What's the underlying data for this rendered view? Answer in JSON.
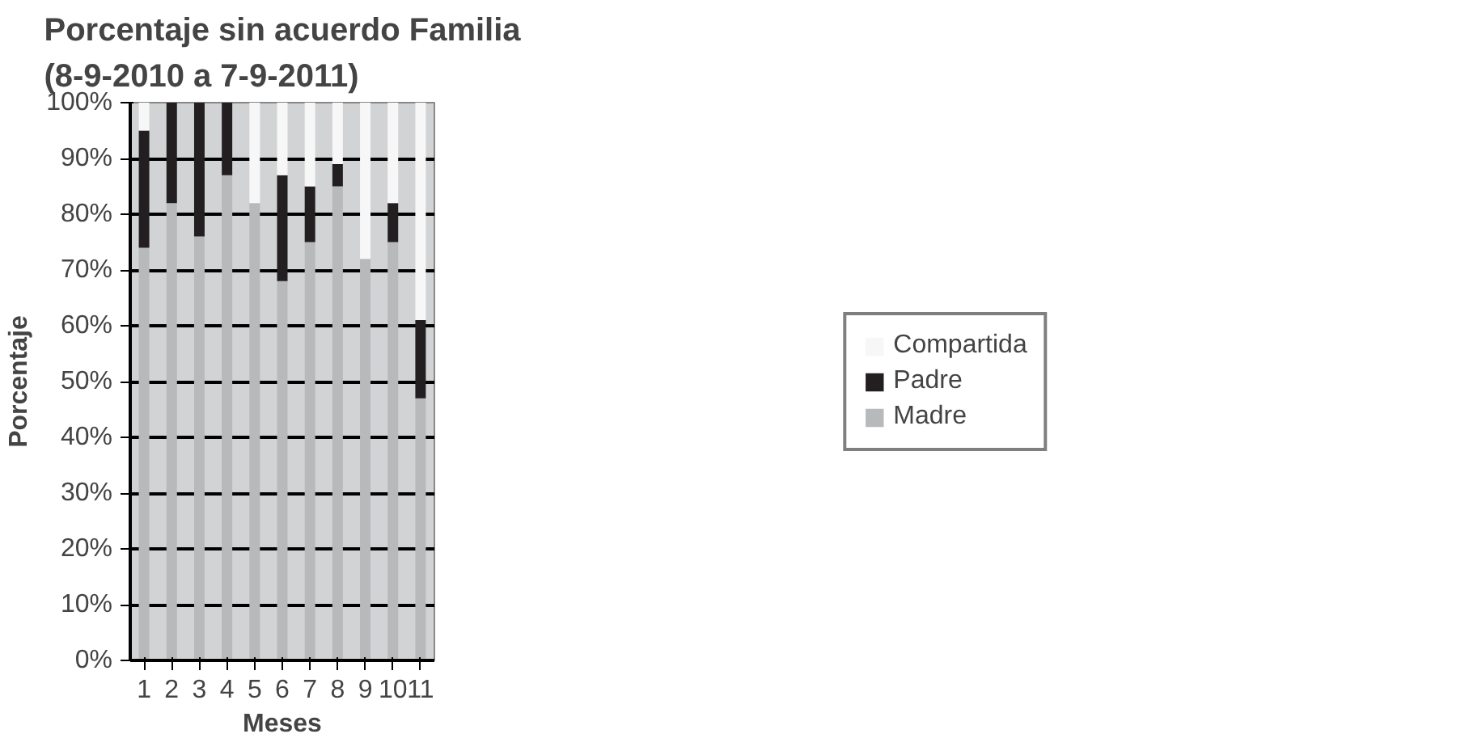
{
  "chart_data": {
    "type": "bar",
    "title": "Porcentaje sin acuerdo Familia\n(8-9-2010 a 7-9-2011)",
    "xlabel": "Meses",
    "ylabel": "Porcentaje",
    "categories": [
      "1",
      "2",
      "3",
      "4",
      "5",
      "6",
      "7",
      "8",
      "9",
      "10",
      "11"
    ],
    "stacked": true,
    "series": [
      {
        "name": "Madre",
        "color": "#b8b9bb",
        "values": [
          74,
          82,
          76,
          87,
          82,
          68,
          75,
          85,
          72,
          75,
          47
        ]
      },
      {
        "name": "Padre",
        "color": "#231f20",
        "values": [
          21,
          18,
          24,
          13,
          0,
          19,
          10,
          4,
          0,
          7,
          14
        ]
      },
      {
        "name": "Compartida",
        "color": "#f7f7f7",
        "values": [
          5,
          0,
          0,
          0,
          18,
          13,
          15,
          11,
          28,
          18,
          39
        ]
      }
    ],
    "ylim": [
      0,
      100
    ],
    "yticks": [
      {
        "value": 0,
        "label": "0%"
      },
      {
        "value": 10,
        "label": "10%"
      },
      {
        "value": 20,
        "label": "20%"
      },
      {
        "value": 30,
        "label": "30%"
      },
      {
        "value": 40,
        "label": "40%"
      },
      {
        "value": 50,
        "label": "50%"
      },
      {
        "value": 60,
        "label": "60%"
      },
      {
        "value": 70,
        "label": "70%"
      },
      {
        "value": 80,
        "label": "80%"
      },
      {
        "value": 90,
        "label": "90%"
      },
      {
        "value": 100,
        "label": "100%"
      }
    ],
    "grid": "y",
    "legend": "right"
  }
}
